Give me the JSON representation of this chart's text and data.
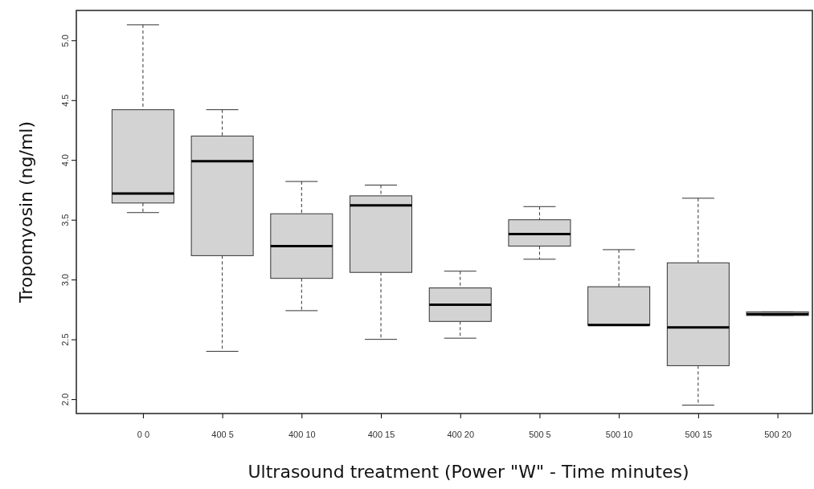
{
  "chart_data": {
    "type": "box",
    "xlabel": "Ultrasound treatment (Power \"W\" - Time minutes)",
    "ylabel": "Tropomyosin (ng/ml)",
    "categories": [
      "0 0",
      "400 5",
      "400 10",
      "400 15",
      "400 20",
      "500 5",
      "500 10",
      "500 15",
      "500 20"
    ],
    "color": "#d3d3d3",
    "boxes": [
      {
        "low": 3.56,
        "q1": 3.64,
        "median": 3.72,
        "q3": 4.42,
        "high": 5.13
      },
      {
        "low": 2.4,
        "q1": 3.2,
        "median": 3.99,
        "q3": 4.2,
        "high": 4.42
      },
      {
        "low": 2.74,
        "q1": 3.01,
        "median": 3.28,
        "q3": 3.55,
        "high": 3.82
      },
      {
        "low": 2.5,
        "q1": 3.06,
        "median": 3.62,
        "q3": 3.7,
        "high": 3.79
      },
      {
        "low": 2.51,
        "q1": 2.65,
        "median": 2.79,
        "q3": 2.93,
        "high": 3.07
      },
      {
        "low": 3.17,
        "q1": 3.28,
        "median": 3.38,
        "q3": 3.5,
        "high": 3.61
      },
      {
        "low": 2.62,
        "q1": 2.62,
        "median": 2.62,
        "q3": 2.94,
        "high": 3.25
      },
      {
        "low": 1.95,
        "q1": 2.28,
        "median": 2.6,
        "q3": 3.14,
        "high": 3.68
      },
      {
        "low": 2.7,
        "q1": 2.7,
        "median": 2.71,
        "q3": 2.73,
        "high": 2.73
      }
    ],
    "ylim": [
      1.88,
      5.25
    ],
    "yticks": [
      {
        "value": 2,
        "label": "2.0"
      },
      2.5,
      {
        "value": 3,
        "label": "3.0"
      },
      3.5,
      {
        "value": 4,
        "label": "4.0"
      },
      4.5,
      {
        "value": 5,
        "label": "5.0"
      }
    ]
  }
}
